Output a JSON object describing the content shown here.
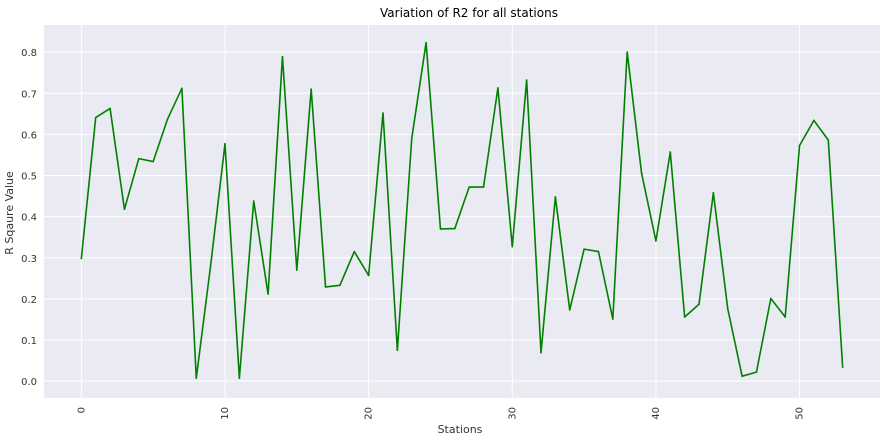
{
  "chart_data": {
    "type": "line",
    "title": "Variation of R2 for all stations",
    "xlabel": "Stations",
    "ylabel": "R Sqaure Value",
    "xlim": [
      -2.6,
      55.6
    ],
    "ylim": [
      -0.041,
      0.866
    ],
    "x_ticks": [
      0,
      10,
      20,
      30,
      40,
      50
    ],
    "y_ticks": [
      0.0,
      0.1,
      0.2,
      0.3,
      0.4,
      0.5,
      0.6,
      0.7,
      0.8
    ],
    "y_tick_labels": [
      "0.0",
      "0.1",
      "0.2",
      "0.3",
      "0.4",
      "0.5",
      "0.6",
      "0.7",
      "0.8"
    ],
    "grid": true,
    "style": {
      "background": "#eaeaf2",
      "grid_color": "#ffffff",
      "line_color": "#008000",
      "text_color": "#333333"
    },
    "series": [
      {
        "values": [
          0.298,
          0.641,
          0.663,
          0.418,
          0.541,
          0.534,
          0.637,
          0.712,
          0.007,
          0.281,
          0.577,
          0.007,
          0.438,
          0.212,
          0.789,
          0.27,
          0.71,
          0.229,
          0.233,
          0.315,
          0.257,
          0.652,
          0.075,
          0.59,
          0.823,
          0.37,
          0.371,
          0.472,
          0.472,
          0.713,
          0.327,
          0.732,
          0.069,
          0.448,
          0.173,
          0.321,
          0.315,
          0.151,
          0.8,
          0.506,
          0.341,
          0.557,
          0.156,
          0.187,
          0.458,
          0.176,
          0.012,
          0.022,
          0.201,
          0.156,
          0.573,
          0.634,
          0.586,
          0.034
        ]
      }
    ]
  }
}
